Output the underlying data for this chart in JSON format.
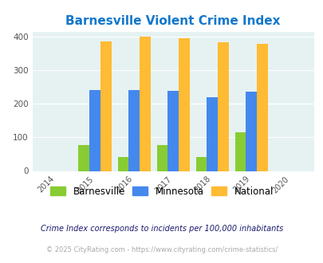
{
  "title": "Barnesville Violent Crime Index",
  "years": [
    2015,
    2016,
    2017,
    2018,
    2019
  ],
  "barnesville": [
    78,
    42,
    78,
    42,
    115
  ],
  "minnesota": [
    241,
    241,
    239,
    220,
    237
  ],
  "national": [
    385,
    399,
    394,
    383,
    379
  ],
  "bar_colors": {
    "barnesville": "#88cc33",
    "minnesota": "#4488ee",
    "national": "#ffbb33"
  },
  "xlim": [
    2013.4,
    2020.6
  ],
  "ylim": [
    0,
    415
  ],
  "yticks": [
    0,
    100,
    200,
    300,
    400
  ],
  "xticks": [
    2014,
    2015,
    2016,
    2017,
    2018,
    2019,
    2020
  ],
  "bg_color": "#e6f2f2",
  "title_color": "#1177cc",
  "footnote1": "Crime Index corresponds to incidents per 100,000 inhabitants",
  "footnote2": "© 2025 CityRating.com - https://www.cityrating.com/crime-statistics/",
  "footnote1_color": "#1a1a6e",
  "footnote2_color": "#aaaaaa",
  "bar_width": 0.28
}
